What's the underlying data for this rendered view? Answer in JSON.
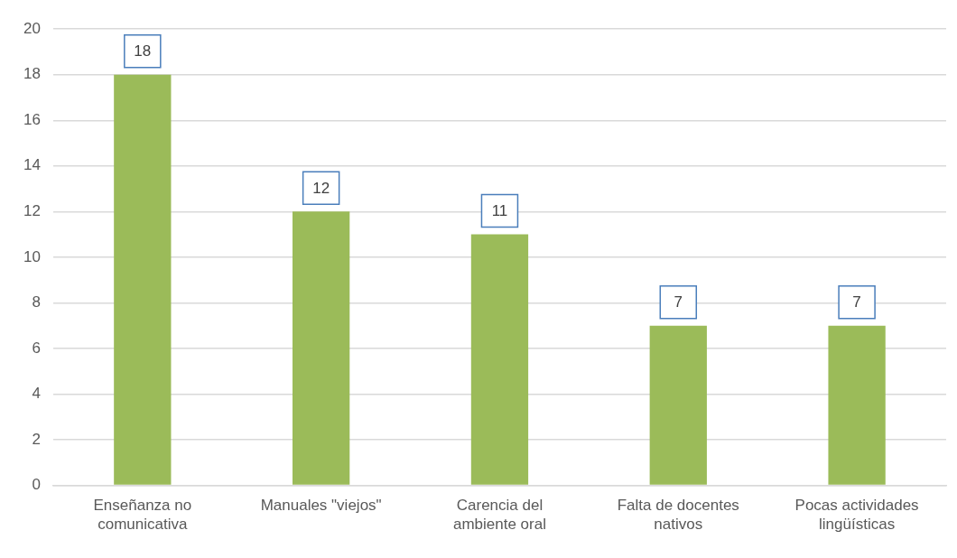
{
  "chart_data": {
    "type": "bar",
    "categories": [
      "Enseñanza no comunicativa",
      "Manuales \"viejos\"",
      "Carencia del ambiente oral",
      "Falta de docentes nativos",
      "Pocas actividades lingüísticas"
    ],
    "values": [
      18,
      12,
      11,
      7,
      7
    ],
    "color": "#9bbb59",
    "ylim": [
      0,
      20
    ],
    "yticks": [
      0,
      2,
      4,
      6,
      8,
      10,
      12,
      14,
      16,
      18,
      20
    ],
    "grid": "y",
    "legend": false,
    "data_labels": true
  }
}
